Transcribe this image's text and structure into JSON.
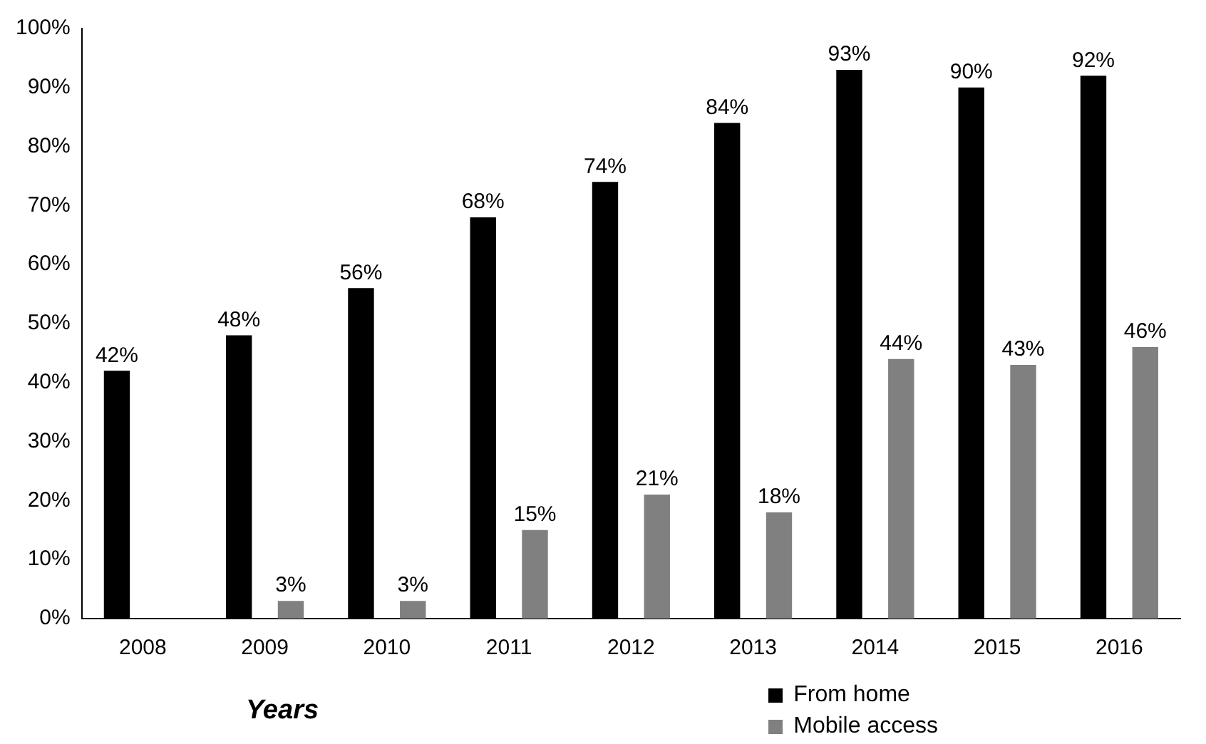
{
  "chart_data": {
    "type": "bar",
    "categories": [
      "2008",
      "2009",
      "2010",
      "2011",
      "2012",
      "2013",
      "2014",
      "2015",
      "2016"
    ],
    "series": [
      {
        "name": "From home",
        "color": "#000000",
        "values": [
          42,
          48,
          56,
          68,
          74,
          84,
          93,
          90,
          92
        ],
        "value_labels": [
          "42%",
          "48%",
          "56%",
          "68%",
          "74%",
          "84%",
          "93%",
          "90%",
          "92%"
        ]
      },
      {
        "name": "Mobile access",
        "color": "#808080",
        "values": [
          null,
          3,
          3,
          15,
          21,
          18,
          44,
          43,
          46
        ],
        "value_labels": [
          null,
          "3%",
          "3%",
          "15%",
          "21%",
          "18%",
          "44%",
          "43%",
          "46%"
        ]
      }
    ],
    "xlabel": "Years",
    "ylim": [
      0,
      100
    ],
    "yticks": [
      {
        "value": 0,
        "label": "0%"
      },
      {
        "value": 10,
        "label": "10%"
      },
      {
        "value": 20,
        "label": "20%"
      },
      {
        "value": 30,
        "label": "30%"
      },
      {
        "value": 40,
        "label": "40%"
      },
      {
        "value": 50,
        "label": "50%"
      },
      {
        "value": 60,
        "label": "60%"
      },
      {
        "value": 70,
        "label": "70%"
      },
      {
        "value": 80,
        "label": "80%"
      },
      {
        "value": 90,
        "label": "90%"
      },
      {
        "value": 100,
        "label": "100%"
      }
    ],
    "grid": false,
    "legend": "bottom right"
  }
}
